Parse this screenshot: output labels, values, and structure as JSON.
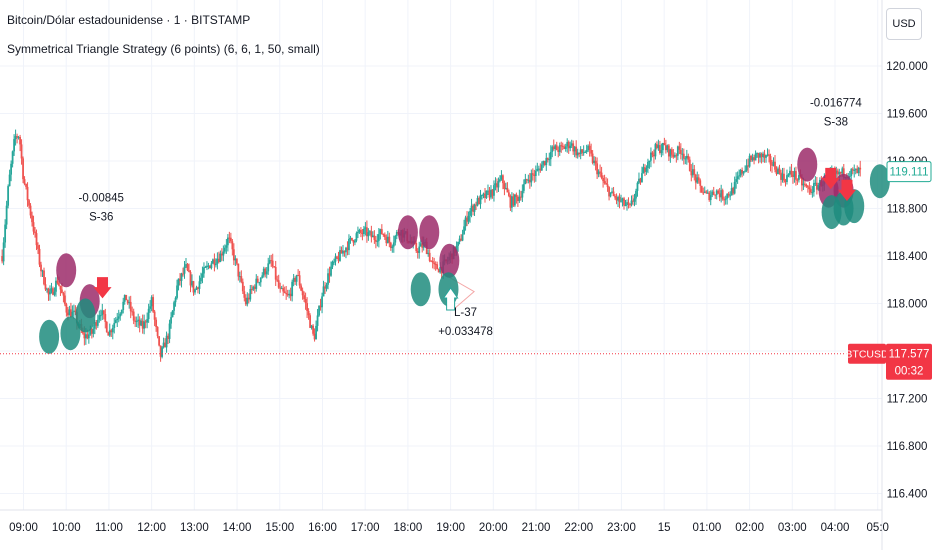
{
  "header": {
    "symbol_title": "Bitcoin/Dólar estadounidense · 1 · BITSTAMP",
    "indicator_title": "Symmetrical Triangle Strategy (6 points) (6, 6, 1, 50, small)"
  },
  "currency_button": "USD",
  "colors": {
    "up": "#26a69a",
    "down": "#ef5350",
    "marker_teal": "#1e8c7e",
    "marker_purple": "#9c2b6a",
    "price_line": "#f23645",
    "last_price_label_bg": "#f23645",
    "current_price_label": "#22ab94",
    "grid": "#f0f3fa"
  },
  "chart_data": {
    "type": "candlestick",
    "ylim": [
      116.3,
      120.45
    ],
    "y_ticks": [
      {
        "value": 120.0,
        "label": "120.000"
      },
      {
        "value": 119.6,
        "label": "119.600"
      },
      {
        "value": 119.2,
        "label": "119.200"
      },
      {
        "value": 118.8,
        "label": "118.800"
      },
      {
        "value": 118.4,
        "label": "118.400"
      },
      {
        "value": 118.0,
        "label": "118.000"
      },
      {
        "value": 117.6,
        "label": "117.600"
      },
      {
        "value": 117.2,
        "label": "117.200"
      },
      {
        "value": 116.8,
        "label": "116.800"
      },
      {
        "value": 116.4,
        "label": "116.400"
      }
    ],
    "x_ticks": [
      {
        "t": 0.0,
        "label": "09:00"
      },
      {
        "t": 1.0,
        "label": "10:00"
      },
      {
        "t": 2.0,
        "label": "11:00"
      },
      {
        "t": 3.0,
        "label": "12:00"
      },
      {
        "t": 4.0,
        "label": "13:00"
      },
      {
        "t": 5.0,
        "label": "14:00"
      },
      {
        "t": 6.0,
        "label": "15:00"
      },
      {
        "t": 7.0,
        "label": "16:00"
      },
      {
        "t": 8.0,
        "label": "17:00"
      },
      {
        "t": 9.0,
        "label": "18:00"
      },
      {
        "t": 10.0,
        "label": "19:00"
      },
      {
        "t": 11.0,
        "label": "20:00"
      },
      {
        "t": 12.0,
        "label": "21:00"
      },
      {
        "t": 13.0,
        "label": "22:00"
      },
      {
        "t": 14.0,
        "label": "23:00"
      },
      {
        "t": 15.0,
        "label": "15"
      },
      {
        "t": 16.0,
        "label": "01:00"
      },
      {
        "t": 17.0,
        "label": "02:00"
      },
      {
        "t": 18.0,
        "label": "03:00"
      },
      {
        "t": 19.0,
        "label": "04:00"
      },
      {
        "t": 20.0,
        "label": "05:0"
      }
    ],
    "x_range": [
      -0.55,
      20.1
    ],
    "price_path": [
      [
        -0.5,
        118.4
      ],
      [
        -0.35,
        119.0
      ],
      [
        -0.2,
        119.4
      ],
      [
        -0.1,
        119.42
      ],
      [
        0.0,
        119.05
      ],
      [
        0.2,
        118.7
      ],
      [
        0.4,
        118.3
      ],
      [
        0.6,
        118.05
      ],
      [
        0.8,
        118.2
      ],
      [
        1.0,
        117.95
      ],
      [
        1.2,
        117.9
      ],
      [
        1.4,
        117.72
      ],
      [
        1.6,
        117.75
      ],
      [
        1.8,
        117.95
      ],
      [
        2.0,
        117.75
      ],
      [
        2.2,
        117.9
      ],
      [
        2.4,
        118.05
      ],
      [
        2.6,
        117.85
      ],
      [
        2.8,
        117.8
      ],
      [
        3.0,
        118.02
      ],
      [
        3.2,
        117.55
      ],
      [
        3.4,
        117.75
      ],
      [
        3.6,
        118.15
      ],
      [
        3.8,
        118.3
      ],
      [
        4.0,
        118.1
      ],
      [
        4.2,
        118.25
      ],
      [
        4.4,
        118.35
      ],
      [
        4.6,
        118.4
      ],
      [
        4.8,
        118.55
      ],
      [
        5.0,
        118.3
      ],
      [
        5.2,
        118.0
      ],
      [
        5.4,
        118.15
      ],
      [
        5.6,
        118.25
      ],
      [
        5.8,
        118.35
      ],
      [
        6.0,
        118.1
      ],
      [
        6.2,
        118.05
      ],
      [
        6.4,
        118.25
      ],
      [
        6.6,
        118.0
      ],
      [
        6.8,
        117.7
      ],
      [
        7.0,
        118.1
      ],
      [
        7.2,
        118.3
      ],
      [
        7.4,
        118.4
      ],
      [
        7.6,
        118.5
      ],
      [
        7.8,
        118.58
      ],
      [
        8.0,
        118.6
      ],
      [
        8.2,
        118.55
      ],
      [
        8.4,
        118.6
      ],
      [
        8.6,
        118.5
      ],
      [
        8.8,
        118.62
      ],
      [
        9.0,
        118.55
      ],
      [
        9.2,
        118.45
      ],
      [
        9.4,
        118.5
      ],
      [
        9.6,
        118.3
      ],
      [
        9.8,
        118.3
      ],
      [
        10.0,
        118.4
      ],
      [
        10.2,
        118.5
      ],
      [
        10.4,
        118.75
      ],
      [
        10.6,
        118.85
      ],
      [
        10.8,
        118.9
      ],
      [
        11.0,
        118.95
      ],
      [
        11.2,
        119.05
      ],
      [
        11.4,
        118.85
      ],
      [
        11.6,
        118.9
      ],
      [
        11.8,
        119.05
      ],
      [
        12.0,
        119.1
      ],
      [
        12.2,
        119.2
      ],
      [
        12.4,
        119.3
      ],
      [
        12.6,
        119.3
      ],
      [
        12.8,
        119.35
      ],
      [
        13.0,
        119.25
      ],
      [
        13.2,
        119.3
      ],
      [
        13.4,
        119.15
      ],
      [
        13.6,
        119.0
      ],
      [
        13.8,
        118.9
      ],
      [
        14.0,
        118.85
      ],
      [
        14.2,
        118.8
      ],
      [
        14.4,
        119.0
      ],
      [
        14.6,
        119.2
      ],
      [
        14.8,
        119.3
      ],
      [
        15.0,
        119.32
      ],
      [
        15.2,
        119.25
      ],
      [
        15.4,
        119.3
      ],
      [
        15.6,
        119.15
      ],
      [
        15.8,
        119.0
      ],
      [
        16.0,
        118.9
      ],
      [
        16.2,
        118.95
      ],
      [
        16.4,
        118.9
      ],
      [
        16.6,
        118.95
      ],
      [
        16.8,
        119.1
      ],
      [
        17.0,
        119.2
      ],
      [
        17.2,
        119.25
      ],
      [
        17.4,
        119.22
      ],
      [
        17.6,
        119.15
      ],
      [
        17.8,
        119.05
      ],
      [
        18.0,
        119.1
      ],
      [
        18.2,
        119.02
      ],
      [
        18.4,
        118.95
      ],
      [
        18.6,
        119.0
      ],
      [
        18.8,
        119.05
      ],
      [
        19.0,
        119.08
      ],
      [
        19.2,
        119.1
      ],
      [
        19.4,
        119.1
      ],
      [
        19.6,
        119.11
      ]
    ],
    "markers": [
      {
        "type": "purple",
        "t": 1.0,
        "price": 118.28
      },
      {
        "type": "purple",
        "t": 1.55,
        "price": 118.02
      },
      {
        "type": "teal",
        "t": 0.6,
        "price": 117.72
      },
      {
        "type": "teal",
        "t": 1.1,
        "price": 117.75
      },
      {
        "type": "teal",
        "t": 1.45,
        "price": 117.9
      },
      {
        "type": "purple",
        "t": 9.0,
        "price": 118.6
      },
      {
        "type": "purple",
        "t": 9.5,
        "price": 118.6
      },
      {
        "type": "purple",
        "t": 9.97,
        "price": 118.36
      },
      {
        "type": "teal",
        "t": 9.3,
        "price": 118.12
      },
      {
        "type": "teal",
        "t": 9.95,
        "price": 118.12
      },
      {
        "type": "purple",
        "t": 18.35,
        "price": 119.17
      },
      {
        "type": "purple",
        "t": 18.85,
        "price": 118.95
      },
      {
        "type": "purple",
        "t": 19.2,
        "price": 118.95
      },
      {
        "type": "teal",
        "t": 18.92,
        "price": 118.77
      },
      {
        "type": "teal",
        "t": 19.2,
        "price": 118.8
      },
      {
        "type": "teal",
        "t": 19.45,
        "price": 118.82
      },
      {
        "type": "teal",
        "t": 20.05,
        "price": 119.03
      }
    ],
    "trade_labels": [
      {
        "lines": [
          "-0.00845",
          "S-36"
        ],
        "t": 1.82,
        "price": 118.7,
        "anchor": "above"
      },
      {
        "lines": [
          "L-37",
          "+0.033478"
        ],
        "t": 10.35,
        "price": 117.93,
        "anchor": "below"
      },
      {
        "lines": [
          "-0.016774",
          "S-38"
        ],
        "t": 19.02,
        "price": 119.5,
        "anchor": "above"
      }
    ],
    "arrows": [
      {
        "t": 1.85,
        "price": 118.1,
        "dir": "down",
        "color": "#f23645"
      },
      {
        "t": 10.0,
        "price": 118.08,
        "dir": "up",
        "color": "#26a69a"
      },
      {
        "t": 18.9,
        "price": 119.02,
        "dir": "down",
        "color": "#f23645"
      },
      {
        "t": 19.28,
        "price": 118.92,
        "dir": "down",
        "color": "#f23645"
      }
    ],
    "last_price": {
      "value": 117.577,
      "label": "117.577",
      "symbol": "BTCUSD",
      "countdown": "00:32"
    },
    "current_price": {
      "value": 119.111,
      "label": "119.111"
    },
    "grid": true
  }
}
